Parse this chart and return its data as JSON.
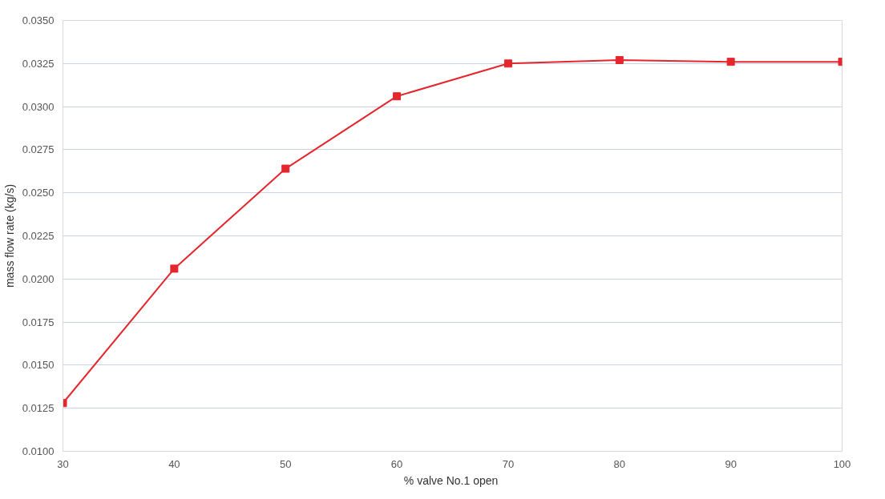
{
  "chart_data": {
    "type": "line",
    "xlabel": "%  valve No.1 open",
    "ylabel": "mass flow rate (kg/s)",
    "x": [
      30,
      40,
      50,
      60,
      70,
      80,
      90,
      100
    ],
    "series": [
      {
        "color": "#e5262d",
        "values": [
          0.0128,
          0.0206,
          0.0264,
          0.0306,
          0.0325,
          0.0327,
          0.0326,
          0.0326
        ]
      }
    ],
    "xlim": [
      30,
      100
    ],
    "xticks": [
      30,
      40,
      50,
      60,
      70,
      80,
      90,
      100
    ],
    "ylim": [
      0.01,
      0.035
    ],
    "yticks": [
      {
        "value": 0.01,
        "label": "0.0100"
      },
      {
        "value": 0.0125,
        "label": "0.0125"
      },
      {
        "value": 0.015,
        "label": "0.0150"
      },
      {
        "value": 0.0175,
        "label": "0.0175"
      },
      {
        "value": 0.02,
        "label": "0.0200"
      },
      {
        "value": 0.0225,
        "label": "0.0225"
      },
      {
        "value": 0.025,
        "label": "0.0250"
      },
      {
        "value": 0.0275,
        "label": "0.0275"
      },
      {
        "value": 0.03,
        "label": "0.0300"
      },
      {
        "value": 0.0325,
        "label": "0.0325"
      },
      {
        "value": 0.035,
        "label": "0.0350"
      }
    ],
    "grid": "y",
    "marker": "square",
    "line_style": "solid"
  }
}
